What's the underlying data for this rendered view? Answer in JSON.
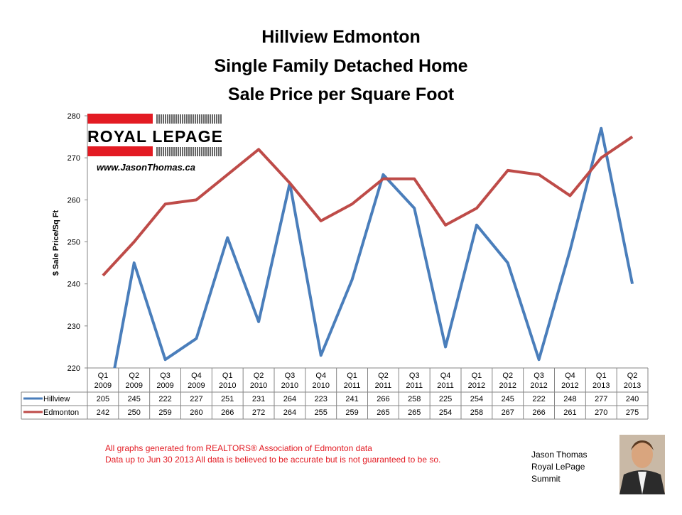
{
  "chart_data": {
    "type": "line",
    "title": [
      "Hillview Edmonton",
      "Single Family Detached Home",
      "Sale Price per Square Foot"
    ],
    "y_label": "$ Sale Price/Sq Ft",
    "categories": [
      "Q1 2009",
      "Q2 2009",
      "Q3 2009",
      "Q4 2009",
      "Q1 2010",
      "Q2 2010",
      "Q3 2010",
      "Q4 2010",
      "Q1 2011",
      "Q2 2011",
      "Q3 2011",
      "Q4 2011",
      "Q1 2012",
      "Q2 2012",
      "Q3 2012",
      "Q4 2012",
      "Q1 2013",
      "Q2 2013"
    ],
    "series": [
      {
        "name": "Hillview",
        "color": "#4a7ebb",
        "values": [
          205,
          245,
          222,
          227,
          251,
          231,
          264,
          223,
          241,
          266,
          258,
          225,
          254,
          245,
          222,
          248,
          277,
          240
        ]
      },
      {
        "name": "Edmonton",
        "color": "#be4b48",
        "values": [
          242,
          250,
          259,
          260,
          266,
          272,
          264,
          255,
          259,
          265,
          265,
          254,
          258,
          267,
          266,
          261,
          270,
          275
        ]
      }
    ],
    "ylim": [
      220,
      280
    ],
    "yticks": [
      220,
      230,
      240,
      250,
      260,
      270,
      280
    ],
    "grid": false,
    "data_table": true
  },
  "logo": {
    "brand": "ROYAL LEPAGE",
    "website": "www.JasonThomas.ca"
  },
  "footer": {
    "notes": [
      "All graphs generated from REALTORS® Association of Edmonton data",
      "Data up to  Jun 30 2013  All data is believed to be accurate but is not guaranteed to be so."
    ],
    "signature": [
      "Jason Thomas",
      "Royal LePage",
      "Summit"
    ]
  }
}
